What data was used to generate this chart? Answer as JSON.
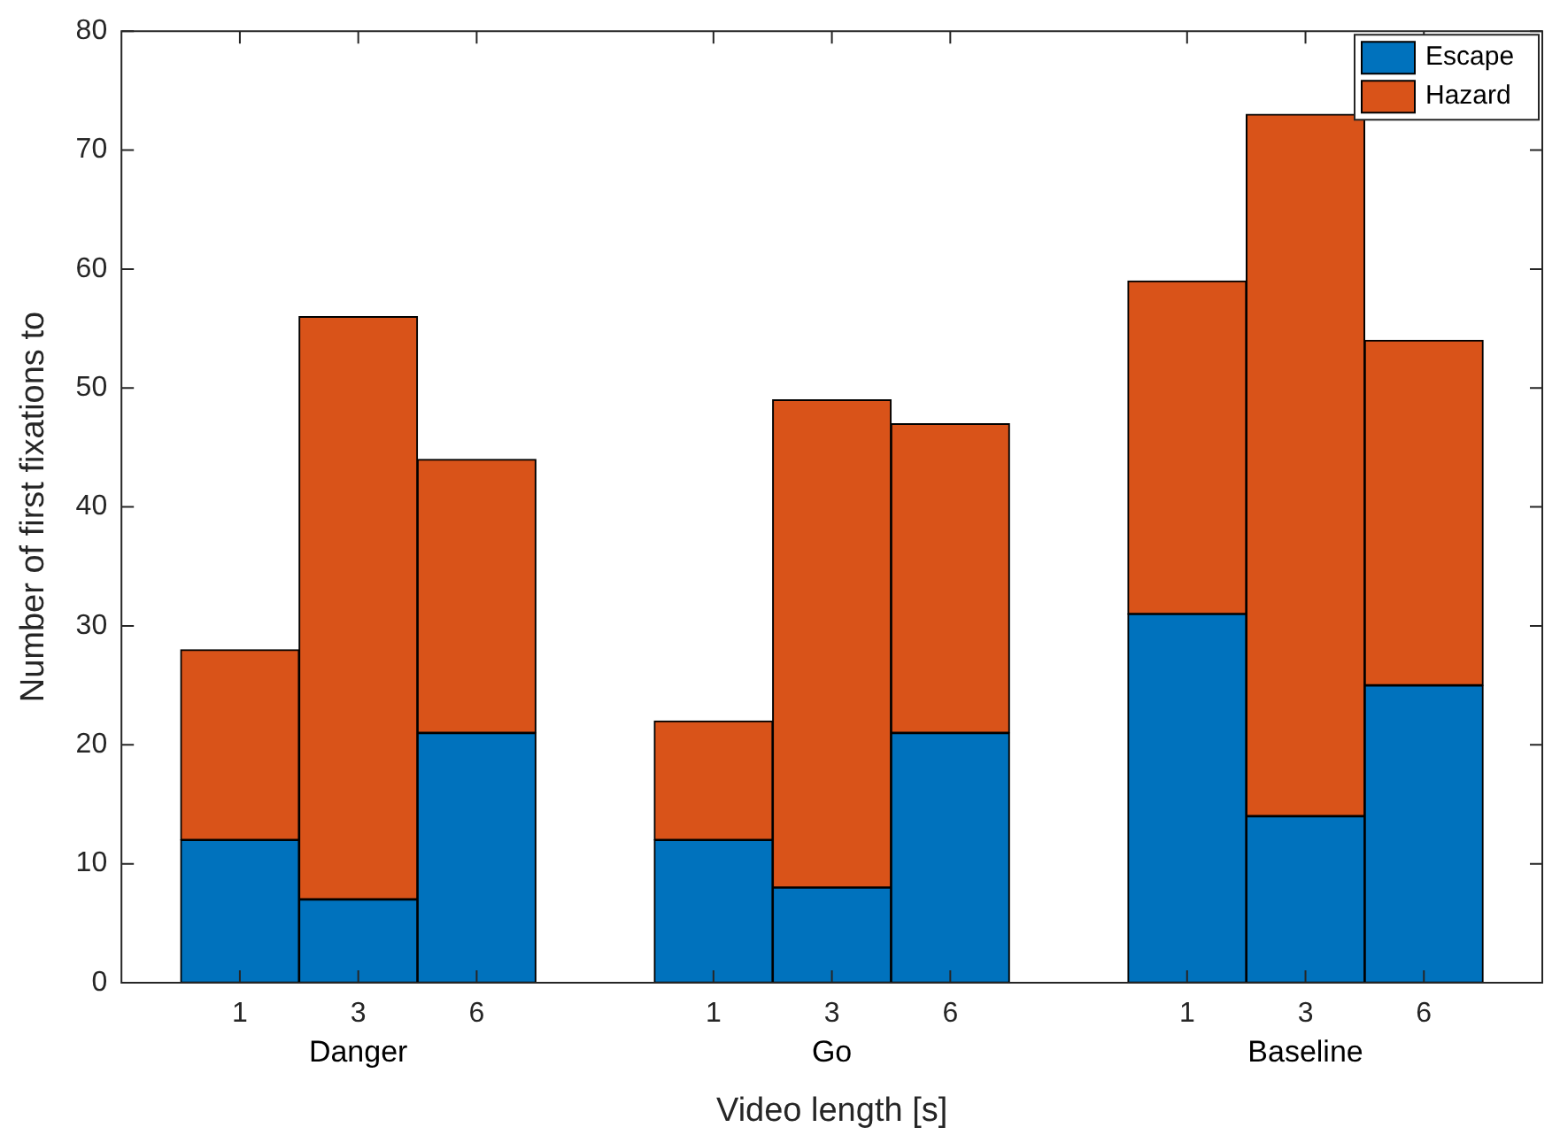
{
  "chart_data": {
    "type": "bar",
    "stacked": true,
    "xlabel": "Video length [s]",
    "ylabel": "Number of first fixations to",
    "categories": [
      "1",
      "3",
      "6",
      null,
      "1",
      "3",
      "6",
      null,
      "1",
      "3",
      "6"
    ],
    "series": [
      {
        "name": "Escape",
        "color": "#0072bd",
        "values": [
          12,
          7,
          21,
          null,
          12,
          8,
          21,
          null,
          31,
          14,
          25
        ]
      },
      {
        "name": "Hazard",
        "color": "#d95319",
        "values": [
          16,
          49,
          23,
          null,
          10,
          41,
          26,
          null,
          28,
          59,
          29
        ]
      }
    ],
    "annotations": [
      "Danger",
      "Go",
      "Baseline"
    ],
    "ylim": [
      0,
      80
    ],
    "yticks": [
      0,
      10,
      20,
      30,
      40,
      50,
      60,
      70,
      80
    ],
    "grid": false,
    "legend": "top right"
  }
}
